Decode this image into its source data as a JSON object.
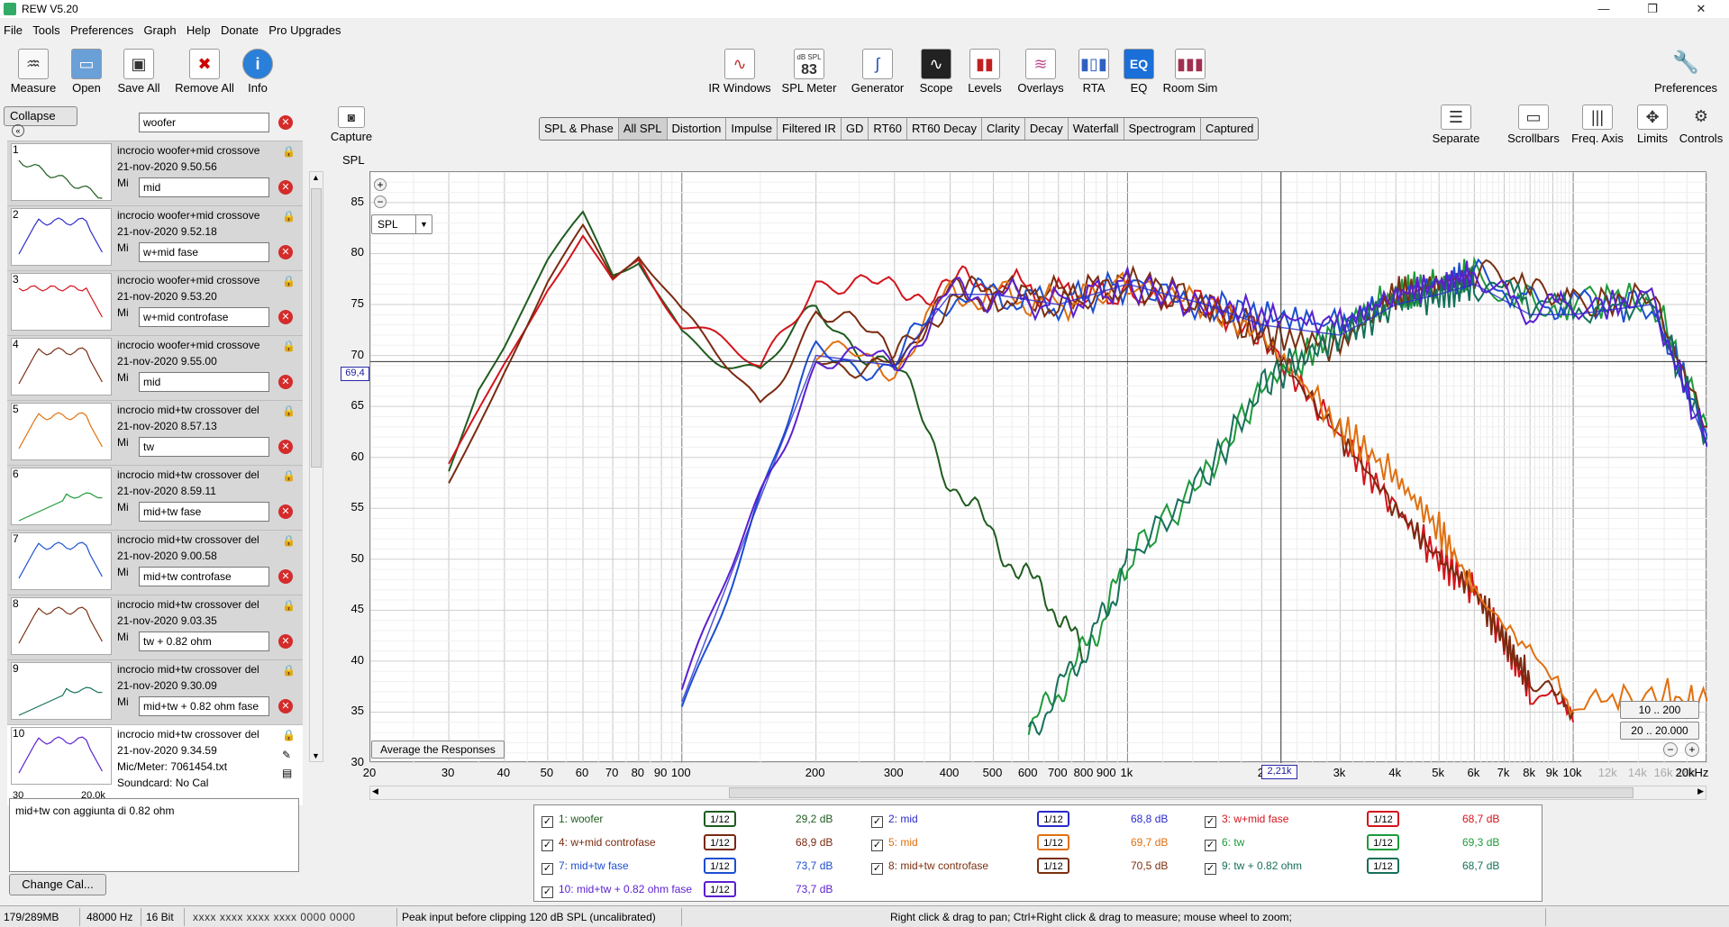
{
  "window": {
    "title": "REW V5.20",
    "minimize": "—",
    "maximize": "❐",
    "close": "✕"
  },
  "menu": [
    "File",
    "Tools",
    "Preferences",
    "Graph",
    "Help",
    "Donate",
    "Pro Upgrades"
  ],
  "toolbar_left": [
    {
      "label": "Measure",
      "icon": "measure-icon"
    },
    {
      "label": "Open",
      "icon": "folder-icon"
    },
    {
      "label": "Save All",
      "icon": "save-icon"
    },
    {
      "label": "Remove All",
      "icon": "remove-icon"
    },
    {
      "label": "Info",
      "icon": "info-icon"
    }
  ],
  "toolbar_center": [
    {
      "label": "IR Windows",
      "icon": "ir-windows-icon"
    },
    {
      "label": "SPL Meter",
      "icon": "spl-meter-icon",
      "display": "83",
      "display_top": "dB SPL"
    },
    {
      "label": "Generator",
      "icon": "generator-icon"
    },
    {
      "label": "Scope",
      "icon": "scope-icon"
    },
    {
      "label": "Levels",
      "icon": "levels-icon"
    },
    {
      "label": "Overlays",
      "icon": "overlays-icon"
    },
    {
      "label": "RTA",
      "icon": "rta-icon"
    },
    {
      "label": "EQ",
      "icon": "eq-icon",
      "display": "EQ"
    },
    {
      "label": "Room Sim",
      "icon": "room-sim-icon"
    }
  ],
  "preferences_label": "Preferences",
  "graph_controls": [
    {
      "label": "Separate",
      "icon": "separate-icon"
    },
    {
      "label": "Scrollbars",
      "icon": "scrollbars-icon"
    },
    {
      "label": "Freq. Axis",
      "icon": "freq-axis-icon"
    },
    {
      "label": "Limits",
      "icon": "limits-icon"
    },
    {
      "label": "Controls",
      "icon": "controls-icon"
    }
  ],
  "capture": {
    "label": "Capture",
    "axis_unit": "SPL"
  },
  "collapse_label": "Collapse",
  "measurements": [
    {
      "num": "1",
      "title": "incrocio woofer+mid crossove",
      "date": "21-nov-2020 9.50.56",
      "meta": "Mi",
      "name": "woofer",
      "color": "#1f5c1f"
    },
    {
      "num": "2",
      "title": "incrocio woofer+mid crossove",
      "date": "21-nov-2020 9.52.18",
      "meta": "Mi",
      "name": "mid",
      "color": "#2a2acb"
    },
    {
      "num": "3",
      "title": "incrocio woofer+mid crossove",
      "date": "21-nov-2020 9.53.20",
      "meta": "Mi",
      "name": "w+mid fase",
      "color": "#d4141c"
    },
    {
      "num": "4",
      "title": "incrocio woofer+mid crossove",
      "date": "21-nov-2020 9.55.00",
      "meta": "Mi",
      "name": "w+mid controfase",
      "color": "#7a2a10"
    },
    {
      "num": "5",
      "title": "incrocio mid+tw crossover del",
      "date": "21-nov-2020 8.57.13",
      "meta": "Mi",
      "name": "mid",
      "color": "#e07010"
    },
    {
      "num": "6",
      "title": "incrocio mid+tw crossover del",
      "date": "21-nov-2020 8.59.11",
      "meta": "Mi",
      "name": "tw",
      "color": "#1d9a3a"
    },
    {
      "num": "7",
      "title": "incrocio mid+tw crossover del",
      "date": "21-nov-2020 9.00.58",
      "meta": "Mi",
      "name": "mid+tw fase",
      "color": "#1c4fd0"
    },
    {
      "num": "8",
      "title": "incrocio mid+tw crossover del",
      "date": "21-nov-2020 9.03.35",
      "meta": "Mi",
      "name": "mid+tw controfase",
      "color": "#7a3010"
    },
    {
      "num": "9",
      "title": "incrocio mid+tw crossover del",
      "date": "21-nov-2020 9.30.09",
      "meta": "Mi",
      "name": "tw + 0.82 ohm",
      "color": "#16705a"
    },
    {
      "num": "10",
      "title": "incrocio mid+tw crossover del",
      "date": "21-nov-2020 9.34.59",
      "meta": "Mic/Meter: 7061454.txt",
      "meta2": "Soundcard: No Cal",
      "name": "mid+tw + 0.82 ohm fase",
      "color": "#5a1fd0",
      "thumb_left": "30",
      "thumb_right": "20,0k"
    }
  ],
  "notes": "mid+tw con aggiunta di 0.82 ohm",
  "change_cal": "Change Cal...",
  "tabs": [
    "SPL & Phase",
    "All SPL",
    "Distortion",
    "Impulse",
    "Filtered IR",
    "GD",
    "RT60",
    "RT60 Decay",
    "Clarity",
    "Decay",
    "Waterfall",
    "Spectrogram",
    "Captured"
  ],
  "active_tab": "All SPL",
  "graph": {
    "spl_selector": "SPL",
    "cursor_value": "69,4",
    "cursor_freq": "2,21k",
    "average_button": "Average the Responses",
    "range_btn_1": "10 .. 200",
    "range_btn_2": "20 .. 20.000",
    "y_ticks": [
      "85",
      "80",
      "75",
      "70",
      "65",
      "60",
      "55",
      "50",
      "45",
      "40",
      "35",
      "30"
    ],
    "x_ticks": [
      "20",
      "30",
      "40",
      "50",
      "60",
      "70",
      "80",
      "90",
      "100",
      "200",
      "300",
      "400",
      "500",
      "600",
      "700",
      "800",
      "900",
      "1k",
      "2",
      "3k",
      "4k",
      "5k",
      "6k",
      "7k",
      "8k",
      "9k",
      "10k",
      "12k",
      "14k",
      "16k",
      "18k",
      "20kHz"
    ]
  },
  "chart_data": {
    "type": "line",
    "xscale": "log",
    "xlim": [
      20,
      20000
    ],
    "ylim": [
      30,
      88
    ],
    "ylabel": "SPL",
    "xlabel": "Hz",
    "grid": true,
    "cursor": {
      "freq": 2210,
      "spl": 69.4
    },
    "series": [
      {
        "name": "woofer",
        "color": "#1f5c1f",
        "x": [
          30,
          35,
          40,
          50,
          60,
          70,
          80,
          100,
          150,
          200,
          300,
          400,
          500,
          600,
          700,
          800
        ],
        "y": [
          58,
          66,
          70,
          78,
          83,
          78,
          80,
          73,
          68,
          74,
          69,
          58,
          52,
          48,
          45,
          40
        ]
      },
      {
        "name": "mid",
        "color": "#2a2acb",
        "x": [
          100,
          120,
          150,
          200,
          250,
          300,
          400,
          500,
          700,
          1000,
          1500,
          2000,
          2500,
          3000,
          4000,
          5000,
          6000,
          8000,
          10000,
          15000,
          20000
        ]
      },
      {
        "name": "w+mid fase",
        "color": "#d4141c",
        "x": [
          30,
          40,
          50,
          60,
          70,
          80,
          100,
          150,
          200,
          300,
          400,
          500,
          700,
          1000,
          1500,
          2000,
          3000,
          4000,
          5000,
          6000,
          7000,
          8000,
          10000
        ],
        "y": [
          59,
          70,
          78,
          83,
          78,
          80,
          73,
          68,
          78,
          76,
          77,
          77,
          76,
          76,
          75,
          72,
          62,
          55,
          50,
          47,
          42,
          37,
          34
        ]
      },
      {
        "name": "w+mid controfase",
        "color": "#7a2a10",
        "x": [
          30,
          40,
          50,
          60,
          70,
          80,
          100,
          150,
          200,
          300,
          400,
          500,
          700,
          1000,
          1500,
          2000,
          3000,
          4000,
          5000,
          6000,
          7000,
          8000,
          10000
        ],
        "y": [
          59,
          70,
          78,
          83,
          78,
          80,
          73,
          65,
          75,
          70,
          76,
          76,
          76,
          77,
          75,
          72,
          62,
          55,
          50,
          47,
          42,
          38,
          35
        ]
      },
      {
        "name": "mid",
        "color": "#e07010",
        "x": [
          200,
          300,
          400,
          500,
          700,
          1000,
          1500,
          2000,
          3000,
          4000,
          5000,
          6000,
          8000,
          10000,
          15000,
          20000
        ],
        "y": [
          70,
          69,
          76,
          76,
          75,
          77,
          75,
          72,
          63,
          58,
          53,
          47,
          42,
          36,
          37,
          36
        ]
      },
      {
        "name": "tw",
        "color": "#1d9a3a",
        "x": [
          600,
          700,
          800,
          900,
          1000,
          1500,
          2000,
          2500,
          3000,
          4000,
          5000,
          6000,
          8000,
          10000,
          15000,
          20000
        ],
        "y": [
          33,
          37,
          41,
          45,
          50,
          58,
          67,
          70,
          73,
          76,
          77,
          78,
          76,
          75,
          76,
          63
        ]
      },
      {
        "name": "mid+tw fase",
        "color": "#1c4fd0",
        "x": [
          100,
          150,
          200,
          300,
          400,
          500,
          700,
          1000,
          1500,
          2000,
          3000,
          4000,
          5000,
          6000,
          8000,
          10000,
          15000,
          20000
        ],
        "y": [
          36,
          56,
          70,
          69,
          76,
          76,
          75,
          77,
          75,
          74,
          73,
          76,
          77,
          78,
          75,
          75,
          75,
          62
        ]
      },
      {
        "name": "mid+tw controfase",
        "color": "#7a3010",
        "x": [
          200,
          300,
          400,
          500,
          700,
          1000,
          1500,
          2000,
          3000,
          4000,
          5000,
          6000,
          8000,
          10000,
          15000,
          20000
        ],
        "y": [
          70,
          69,
          76,
          76,
          75,
          77,
          75,
          72,
          71,
          76,
          77,
          78,
          76,
          75,
          76,
          63
        ]
      },
      {
        "name": "tw + 0.82 ohm",
        "color": "#16705a",
        "x": [
          600,
          700,
          800,
          900,
          1000,
          1500,
          2000,
          2500,
          3000,
          4000,
          5000,
          6000,
          8000,
          10000,
          15000,
          20000
        ],
        "y": [
          33,
          37,
          41,
          45,
          50,
          58,
          67,
          70,
          72,
          75,
          76,
          77,
          75,
          74,
          75,
          62
        ]
      },
      {
        "name": "mid+tw + 0.82 ohm fase",
        "color": "#5a1fd0",
        "x": [
          100,
          150,
          200,
          300,
          400,
          500,
          700,
          1000,
          1500,
          2000,
          3000,
          4000,
          5000,
          6000,
          8000,
          10000,
          15000,
          20000
        ],
        "y": [
          36,
          56,
          70,
          69,
          76,
          76,
          75,
          77,
          75,
          74,
          73,
          76,
          77,
          78,
          74,
          75,
          75,
          61
        ]
      }
    ]
  },
  "legend": [
    {
      "label": "1: woofer",
      "smooth": "1/12",
      "value": "29,2 dB",
      "color": "#1f5c1f"
    },
    {
      "label": "2: mid",
      "smooth": "1/12",
      "value": "68,8 dB",
      "color": "#2a2acb"
    },
    {
      "label": "3: w+mid fase",
      "smooth": "1/12",
      "value": "68,7 dB",
      "color": "#d4141c"
    },
    {
      "label": "4: w+mid controfase",
      "smooth": "1/12",
      "value": "68,9 dB",
      "color": "#7a2a10"
    },
    {
      "label": "5: mid",
      "smooth": "1/12",
      "value": "69,7 dB",
      "color": "#e07010"
    },
    {
      "label": "6: tw",
      "smooth": "1/12",
      "value": "69,3 dB",
      "color": "#1d9a3a"
    },
    {
      "label": "7: mid+tw fase",
      "smooth": "1/12",
      "value": "73,7 dB",
      "color": "#1c4fd0"
    },
    {
      "label": "8: mid+tw controfase",
      "smooth": "1/12",
      "value": "70,5 dB",
      "color": "#7a3010"
    },
    {
      "label": "9: tw + 0.82 ohm",
      "smooth": "1/12",
      "value": "68,7 dB",
      "color": "#16705a"
    },
    {
      "label": "10: mid+tw + 0.82 ohm fase",
      "smooth": "1/12",
      "value": "73,7 dB",
      "color": "#5a1fd0"
    }
  ],
  "status": {
    "memory": "179/289MB",
    "rate": "48000 Hz",
    "bits": "16 Bit",
    "levels": "xxxx xxxx  xxxx xxxx  0000 0000",
    "peak": "Peak input before clipping 120 dB SPL (uncalibrated)",
    "hint": "Right click & drag to pan; Ctrl+Right click & drag to measure; mouse wheel to zoom;"
  }
}
